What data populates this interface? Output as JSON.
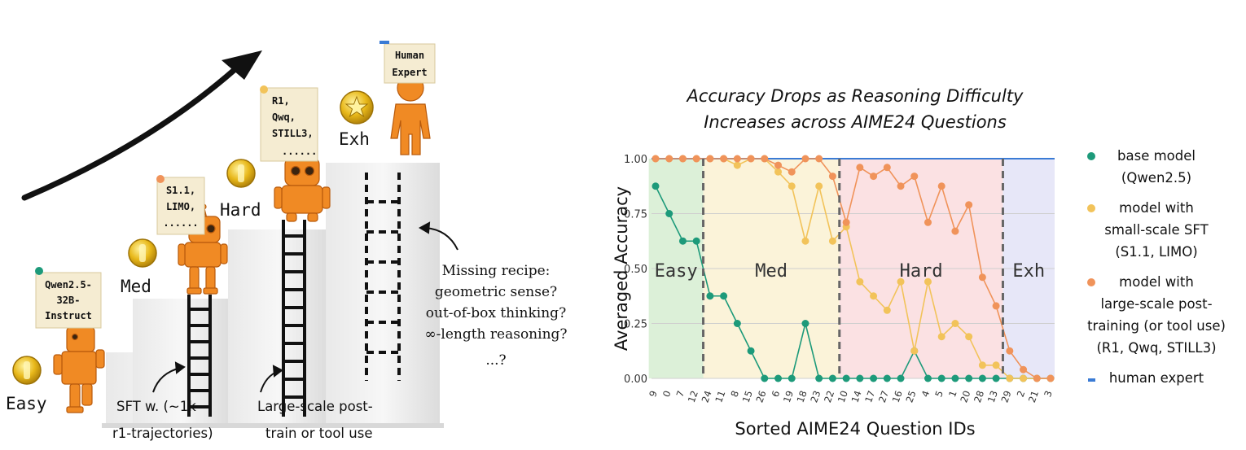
{
  "illustration": {
    "levels": [
      {
        "key": "easy",
        "label": "Easy",
        "note_lines": [
          "Qwen2.5-",
          "32B-",
          "Instruct"
        ]
      },
      {
        "key": "med",
        "label": "Med",
        "note_lines": [
          "S1.1,",
          "LIMO,",
          "......"
        ]
      },
      {
        "key": "hard",
        "label": "Hard",
        "note_lines": [
          "R1,",
          "Qwq,",
          "STILL3,",
          "......"
        ]
      },
      {
        "key": "exh",
        "label": "Exh",
        "note_lines": [
          "Human",
          "Expert"
        ]
      }
    ],
    "captions": {
      "sft": [
        "SFT w. (~1k",
        "r1-trajectories)"
      ],
      "large": [
        "Large-scale post-",
        "train or tool use"
      ],
      "missing": [
        "Missing recipe:",
        "geometric sense?",
        "out-of-box thinking?",
        "∞-length reasoning?",
        "...?"
      ]
    },
    "colors": {
      "robot": "#f08a24",
      "coin": "#e8b81a",
      "note_bg": "#f5ecd2"
    }
  },
  "chart_data": {
    "type": "line",
    "title": [
      "Accuracy Drops as Reasoning Difficulty",
      "Increases across AIME24 Questions"
    ],
    "xlabel": "Sorted AIME24 Question IDs",
    "ylabel": "Averaged Accuracy",
    "categories": [
      "9",
      "0",
      "7",
      "12",
      "24",
      "11",
      "8",
      "15",
      "26",
      "6",
      "19",
      "18",
      "23",
      "22",
      "10",
      "14",
      "17",
      "27",
      "16",
      "25",
      "4",
      "5",
      "1",
      "20",
      "28",
      "13",
      "29",
      "2",
      "21",
      "3"
    ],
    "ylim": [
      0,
      1
    ],
    "yticks": [
      "0.00",
      "0.25",
      "0.50",
      "0.75",
      "1.00"
    ],
    "grid": "horizontal",
    "legend_position": "right",
    "regions": [
      {
        "label": "Easy",
        "from_index": 0,
        "to_index": 3,
        "color": "#dcf0d8"
      },
      {
        "label": "Med",
        "from_index": 4,
        "to_index": 13,
        "color": "#fbf3d9"
      },
      {
        "label": "Hard",
        "from_index": 14,
        "to_index": 25,
        "color": "#fbe1e3"
      },
      {
        "label": "Exh",
        "from_index": 26,
        "to_index": 29,
        "color": "#e7e7f8"
      }
    ],
    "series": [
      {
        "name": "base model (Qwen2.5)",
        "legend_lines": [
          "base model",
          "(Qwen2.5)"
        ],
        "color": "#1d9a7a",
        "values": [
          0.875,
          0.75,
          0.625,
          0.625,
          0.375,
          0.375,
          0.25,
          0.125,
          0,
          0,
          0,
          0.25,
          0,
          0,
          0,
          0,
          0,
          0,
          0,
          0.125,
          0,
          0,
          0,
          0,
          0,
          0,
          0,
          0,
          0,
          0
        ]
      },
      {
        "name": "model with small-scale SFT (S1.1, LIMO)",
        "legend_lines": [
          "model with",
          "small-scale SFT",
          "(S1.1, LIMO)"
        ],
        "color": "#f2c35a",
        "values": [
          1,
          1,
          1,
          1,
          1,
          1,
          0.97,
          1,
          1,
          0.94,
          0.875,
          0.625,
          0.875,
          0.625,
          0.69,
          0.44,
          0.375,
          0.31,
          0.44,
          0.125,
          0.44,
          0.19,
          0.25,
          0.19,
          0.06,
          0.06,
          0,
          0,
          0,
          0
        ]
      },
      {
        "name": "model with large-scale post-training (or tool use) (R1, Qwq, STILL3)",
        "legend_lines": [
          "model with",
          "large-scale post-",
          "training (or tool use)",
          "(R1, Qwq, STILL3)"
        ],
        "color": "#f0935a",
        "values": [
          1,
          1,
          1,
          1,
          1,
          1,
          1,
          1,
          1,
          0.97,
          0.94,
          1,
          1,
          0.92,
          0.71,
          0.96,
          0.92,
          0.96,
          0.875,
          0.92,
          0.71,
          0.875,
          0.67,
          0.79,
          0.46,
          0.33,
          0.125,
          0.04,
          0,
          0
        ]
      },
      {
        "name": "human expert",
        "legend_lines": [
          "human expert"
        ],
        "color": "#3a7bd5",
        "values": [
          1,
          1,
          1,
          1,
          1,
          1,
          1,
          1,
          1,
          1,
          1,
          1,
          1,
          1,
          1,
          1,
          1,
          1,
          1,
          1,
          1,
          1,
          1,
          1,
          1,
          1,
          1,
          1,
          1,
          1
        ]
      }
    ]
  }
}
